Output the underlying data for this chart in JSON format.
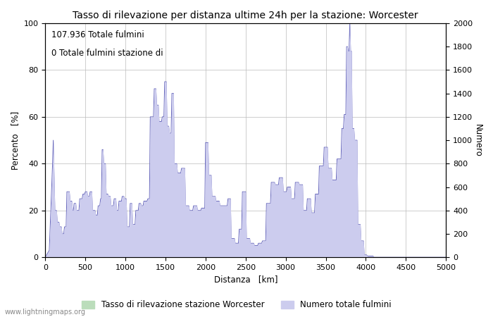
{
  "title": "Tasso di rilevazione per distanza ultime 24h per la stazione: Worcester",
  "xlabel": "Distanza   [km]",
  "ylabel_left": "Percento   [%]",
  "ylabel_right": "Numero",
  "annotation_line1": "107.936 Totale fulmini",
  "annotation_line2": "0 Totale fulmini stazione di",
  "xlim": [
    0,
    5000
  ],
  "ylim_left": [
    0,
    100
  ],
  "ylim_right": [
    0,
    2000
  ],
  "xticks": [
    0,
    500,
    1000,
    1500,
    2000,
    2500,
    3000,
    3500,
    4000,
    4500,
    5000
  ],
  "yticks_left": [
    0,
    20,
    40,
    60,
    80,
    100
  ],
  "yticks_right": [
    0,
    200,
    400,
    600,
    800,
    1000,
    1200,
    1400,
    1600,
    1800,
    2000
  ],
  "legend_green": "Tasso di rilevazione stazione Worcester",
  "legend_blue": "Numero totale fulmini",
  "watermark": "www.lightningmaps.org",
  "line_color": "#6666bb",
  "fill_color": "#ccccee",
  "green_fill_color": "#bbddbb",
  "grid_color": "#bbbbbb",
  "title_fontsize": 10,
  "label_fontsize": 8.5,
  "tick_fontsize": 8,
  "annotation_fontsize": 8.5
}
